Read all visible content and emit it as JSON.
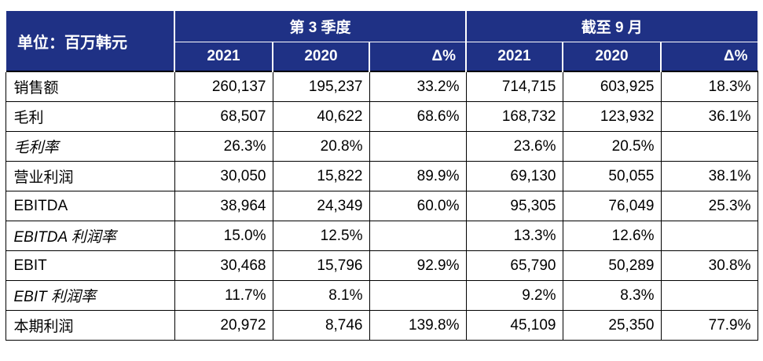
{
  "header": {
    "unit_label": "单位：百万韩元",
    "group_q3": "第 3 季度",
    "group_ytd": "截至 9 月",
    "columns": [
      "2021",
      "2020",
      "Δ%",
      "2021",
      "2020",
      "Δ%"
    ]
  },
  "rows": [
    {
      "label": "销售额",
      "values": [
        "260,137",
        "195,237",
        "33.2%",
        "714,715",
        "603,925",
        "18.3%"
      ]
    },
    {
      "label": "毛利",
      "values": [
        "68,507",
        "40,622",
        "68.6%",
        "168,732",
        "123,932",
        "36.1%"
      ]
    },
    {
      "label": "毛利率",
      "values": [
        "26.3%",
        "20.8%",
        "",
        "23.6%",
        "20.5%",
        ""
      ]
    },
    {
      "label": "营业利润",
      "values": [
        "30,050",
        "15,822",
        "89.9%",
        "69,130",
        "50,055",
        "38.1%"
      ]
    },
    {
      "label": "EBITDA",
      "values": [
        "38,964",
        "24,349",
        "60.0%",
        "95,305",
        "76,049",
        "25.3%"
      ]
    },
    {
      "label": "EBITDA 利润率",
      "values": [
        "15.0%",
        "12.5%",
        "",
        "13.3%",
        "12.6%",
        ""
      ]
    },
    {
      "label": "EBIT",
      "values": [
        "30,468",
        "15,796",
        "92.9%",
        "65,790",
        "50,289",
        "30.8%"
      ]
    },
    {
      "label": "EBIT 利润率",
      "values": [
        "11.7%",
        "8.1%",
        "",
        "9.2%",
        "8.3%",
        ""
      ]
    },
    {
      "label": "本期利润",
      "values": [
        "20,972",
        "8,746",
        "139.8%",
        "45,109",
        "25,350",
        "77.9%"
      ]
    }
  ],
  "colors": {
    "header_bg": "#1f3185",
    "header_text": "#ffffff",
    "border": "#000000"
  }
}
